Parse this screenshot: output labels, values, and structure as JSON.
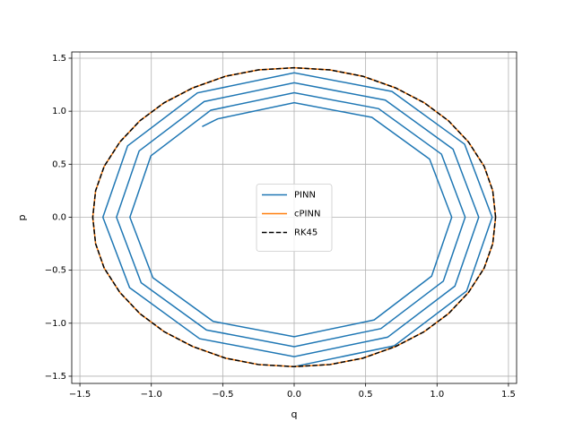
{
  "chart_data": {
    "type": "line",
    "xlabel": "q",
    "ylabel": "p",
    "xlim": [
      -1.557,
      1.557
    ],
    "ylim": [
      -1.568,
      1.559
    ],
    "xticks": [
      {
        "value": -1.5,
        "label": "−1.5"
      },
      {
        "value": -1.0,
        "label": "−1.0"
      },
      {
        "value": -0.5,
        "label": "−0.5"
      },
      {
        "value": 0,
        "label": "0.0"
      },
      0.5,
      {
        "value": 1.0,
        "label": "1.0"
      },
      1.5
    ],
    "yticks": [
      {
        "value": -1.5,
        "label": "−1.5"
      },
      {
        "value": -1.0,
        "label": "−1.0"
      },
      {
        "value": -0.5,
        "label": "−0.5"
      },
      {
        "value": 0,
        "label": "0.0"
      },
      0.5,
      {
        "value": 1.0,
        "label": "1.0"
      },
      1.5
    ],
    "grid": true,
    "legend": "center",
    "series": [
      {
        "name": "PINN",
        "color": "#1f77b4",
        "dashed": false,
        "x": [
          -0.644,
          -0.536,
          0,
          0.544,
          0.948,
          1.103,
          0.962,
          0.56,
          0,
          -0.567,
          -0.989,
          -1.15,
          -1.003,
          -0.583,
          0,
          0.591,
          1.031,
          1.197,
          1.044,
          0.607,
          0,
          -0.614,
          -1.071,
          -1.244,
          -1.085,
          -0.63,
          0,
          0.638,
          1.112,
          1.292,
          1.125,
          0.654,
          0,
          -0.662,
          -1.152,
          -1.339,
          -1.166,
          -0.677,
          0,
          0.685,
          1.193,
          1.386,
          1.207,
          0.701,
          0
        ],
        "y": [
          0.855,
          0.928,
          1.08,
          0.942,
          0.548,
          0,
          -0.556,
          -0.969,
          -1.127,
          -0.983,
          -0.571,
          0,
          0.579,
          1.01,
          1.174,
          1.024,
          0.595,
          0,
          -0.603,
          -1.051,
          -1.221,
          -1.064,
          -0.618,
          0,
          0.626,
          1.091,
          1.268,
          1.105,
          0.642,
          0,
          -0.65,
          -1.132,
          -1.315,
          -1.146,
          -0.665,
          0,
          0.673,
          1.173,
          1.362,
          1.186,
          0.689,
          0,
          -0.697,
          -1.213,
          -1.409
        ]
      },
      {
        "name": "cPINN",
        "color": "#ff7f0e",
        "dashed": false,
        "x": [
          1.41,
          1.39,
          1.33,
          1.22,
          1.08,
          0.91,
          0.71,
          0.48,
          0.25,
          0,
          -0.25,
          -0.48,
          -0.71,
          -0.91,
          -1.08,
          -1.22,
          -1.33,
          -1.39,
          -1.41,
          -1.39,
          -1.33,
          -1.22,
          -1.08,
          -0.91,
          -0.71,
          -0.48,
          -0.25,
          0,
          0.25,
          0.48,
          0.71,
          0.91,
          1.08,
          1.22,
          1.33,
          1.39,
          1.41
        ],
        "y": [
          0,
          0.25,
          0.48,
          0.71,
          0.91,
          1.08,
          1.22,
          1.33,
          1.39,
          1.41,
          1.39,
          1.33,
          1.22,
          1.08,
          0.91,
          0.71,
          0.48,
          0.25,
          0,
          -0.25,
          -0.48,
          -0.71,
          -0.91,
          -1.08,
          -1.22,
          -1.33,
          -1.39,
          -1.41,
          -1.39,
          -1.33,
          -1.22,
          -1.08,
          -0.91,
          -0.71,
          -0.48,
          -0.25,
          0
        ]
      },
      {
        "name": "RK45",
        "color": "#000000",
        "dashed": true,
        "x": [
          1.41,
          1.39,
          1.33,
          1.22,
          1.08,
          0.91,
          0.71,
          0.48,
          0.25,
          0,
          -0.25,
          -0.48,
          -0.71,
          -0.91,
          -1.08,
          -1.22,
          -1.33,
          -1.39,
          -1.41,
          -1.39,
          -1.33,
          -1.22,
          -1.08,
          -0.91,
          -0.71,
          -0.48,
          -0.25,
          0,
          0.25,
          0.48,
          0.71,
          0.91,
          1.08,
          1.22,
          1.33,
          1.39,
          1.41
        ],
        "y": [
          0,
          0.25,
          0.48,
          0.71,
          0.91,
          1.08,
          1.22,
          1.33,
          1.39,
          1.41,
          1.39,
          1.33,
          1.22,
          1.08,
          0.91,
          0.71,
          0.48,
          0.25,
          0,
          -0.25,
          -0.48,
          -0.71,
          -0.91,
          -1.08,
          -1.22,
          -1.33,
          -1.39,
          -1.41,
          -1.39,
          -1.33,
          -1.22,
          -1.08,
          -0.91,
          -0.71,
          -0.48,
          -0.25,
          0
        ]
      }
    ]
  }
}
